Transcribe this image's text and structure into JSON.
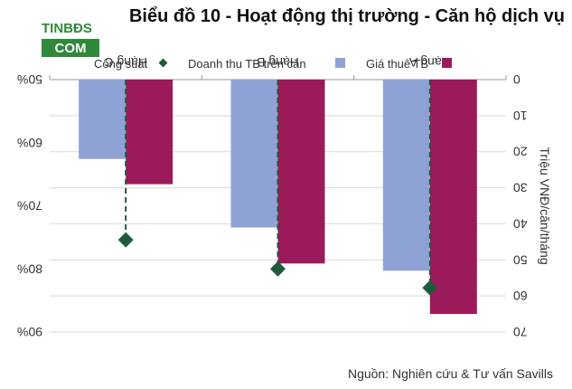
{
  "watermark": {
    "line1": "TINBĐS",
    "line2": "COM"
  },
  "chart_data": {
    "type": "bar",
    "title": "Biểu đồ 10 - Hoạt động thị trường - Căn hộ dịch vụ",
    "categories": [
      "Hạng A",
      "Hạng B",
      "Hạng C"
    ],
    "series": [
      {
        "name": "Giá thuê TB",
        "kind": "bar",
        "axis": "right",
        "color": "#9b1b5a",
        "values": [
          65,
          51,
          29
        ]
      },
      {
        "name": "Doanh thu TB trên căn",
        "kind": "bar",
        "axis": "right",
        "color": "#8fa2d4",
        "values": [
          53,
          41,
          22
        ]
      },
      {
        "name": "Công suất",
        "kind": "marker",
        "axis": "left",
        "color": "#1e5b3a",
        "values": [
          0.83,
          0.8,
          0.754
        ]
      }
    ],
    "y_right": {
      "label": "Triệu VNĐ/căn/tháng",
      "min": 0,
      "max": 70,
      "ticks": [
        0,
        10,
        20,
        30,
        40,
        50,
        60,
        70
      ]
    },
    "y_left": {
      "min": 0.5,
      "max": 0.9,
      "ticks": [
        "50%",
        "60%",
        "70%",
        "80%",
        "90%"
      ]
    },
    "legend_position": "top",
    "gridlines": true,
    "source": "Nguồn: Nghiên cứu & Tư vấn Savills",
    "orientation_note": "rotated-180"
  }
}
